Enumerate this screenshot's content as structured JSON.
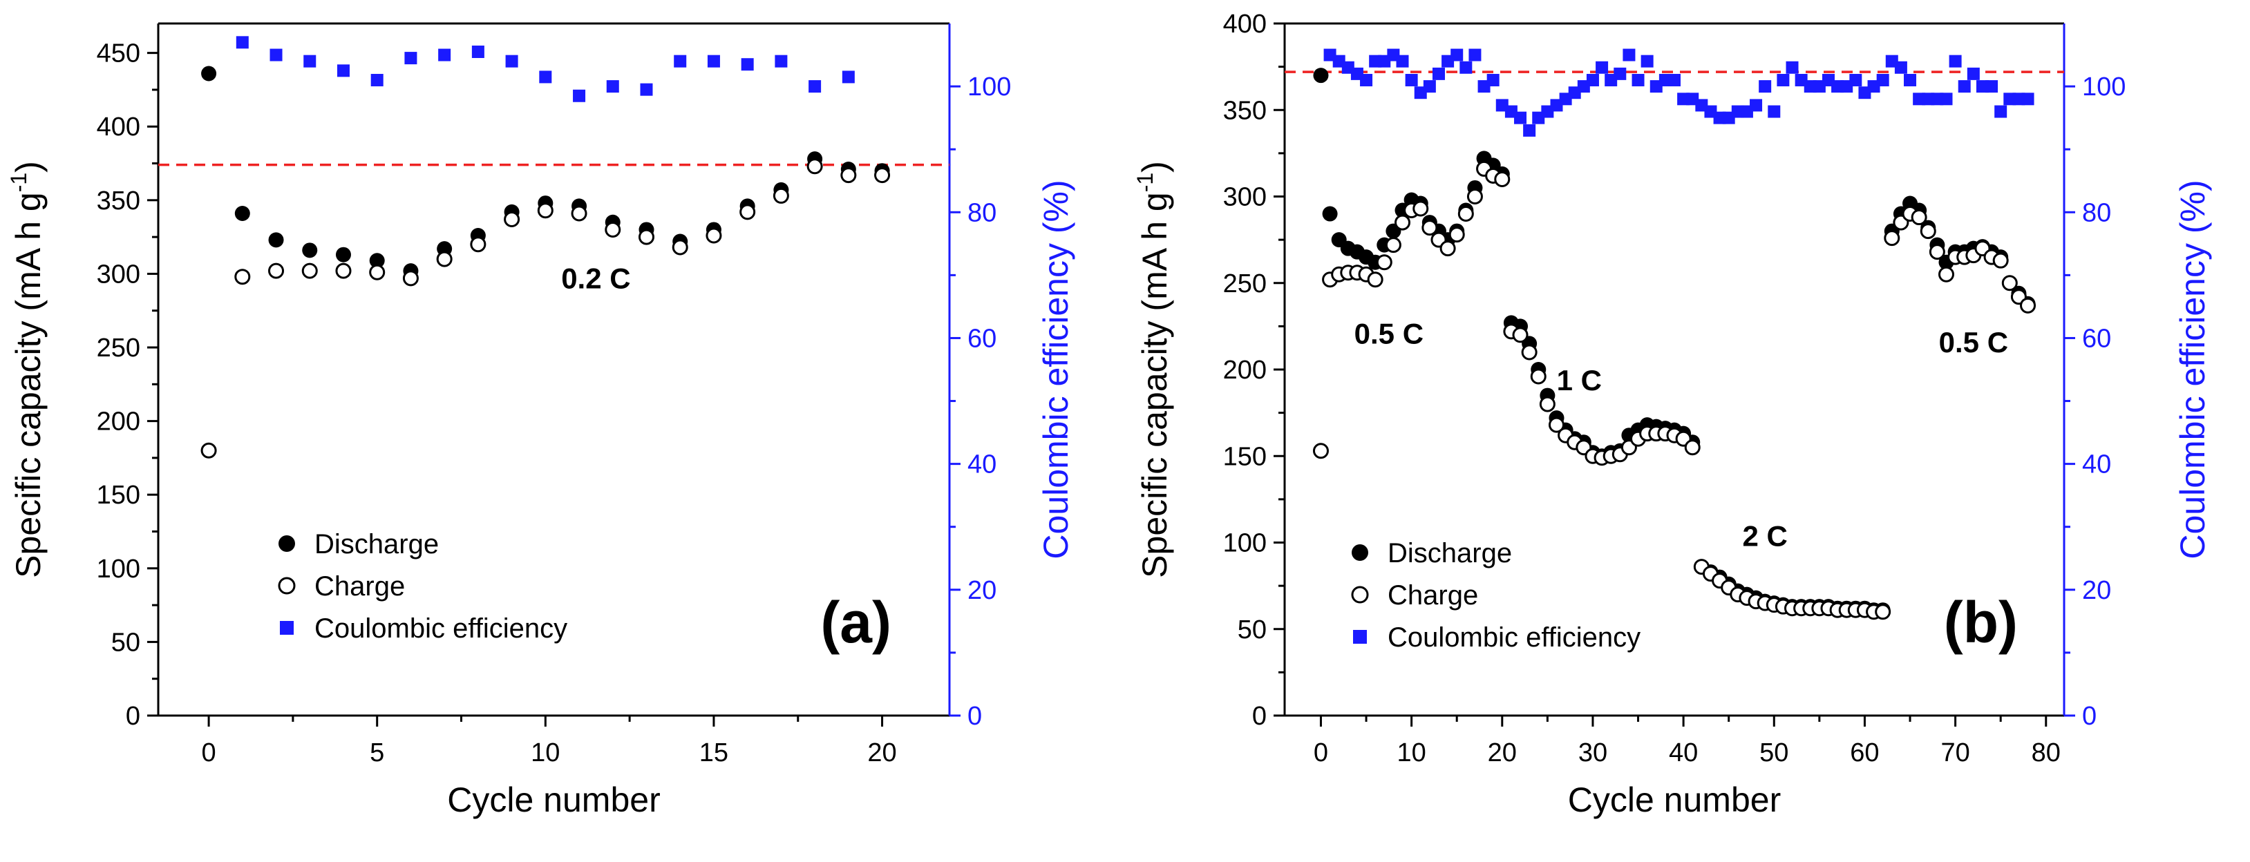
{
  "chart_data": [
    {
      "panel": "(a)",
      "type": "scatter",
      "xlabel": "Cycle number",
      "ylabel_main": "Specific capacity (mA h g",
      "ylabel_sup": "-1",
      "ylabel_close": ")",
      "ylabel_right": "Coulombic efficiency (%)",
      "xlim": [
        -1.5,
        22
      ],
      "ylim": [
        0,
        470
      ],
      "y2lim": [
        0,
        110
      ],
      "xticks": [
        0,
        5,
        10,
        15,
        20
      ],
      "yticks": [
        0,
        50,
        100,
        150,
        200,
        250,
        300,
        350,
        400,
        450
      ],
      "y2ticks": [
        0,
        20,
        40,
        60,
        80,
        100
      ],
      "ref_line_capacity": 374,
      "annotations": [
        {
          "text": "0.2 C",
          "x": 11.5,
          "y": 290
        }
      ],
      "legend": {
        "position": "bottom-left",
        "entries": [
          "Discharge",
          "Charge",
          "Coulombic efficiency"
        ]
      },
      "series": [
        {
          "name": "Discharge",
          "axis": "left",
          "x": [
            0,
            1,
            2,
            3,
            4,
            5,
            6,
            7,
            8,
            9,
            10,
            11,
            12,
            13,
            14,
            15,
            16,
            17,
            18,
            19,
            20
          ],
          "y": [
            436,
            341,
            323,
            316,
            313,
            309,
            302,
            317,
            326,
            342,
            348,
            346,
            335,
            330,
            322,
            330,
            346,
            357,
            378,
            371,
            370
          ]
        },
        {
          "name": "Charge",
          "axis": "left",
          "x": [
            0,
            1,
            2,
            3,
            4,
            5,
            6,
            7,
            8,
            9,
            10,
            11,
            12,
            13,
            14,
            15,
            16,
            17,
            18,
            19,
            20
          ],
          "y": [
            180,
            298,
            302,
            302,
            302,
            301,
            297,
            310,
            320,
            337,
            343,
            341,
            330,
            325,
            318,
            326,
            342,
            353,
            373,
            367,
            367
          ]
        },
        {
          "name": "Coulombic efficiency",
          "axis": "right",
          "x": [
            1,
            2,
            3,
            4,
            5,
            6,
            7,
            8,
            9,
            10,
            11,
            12,
            13,
            14,
            15,
            16,
            17,
            18,
            19
          ],
          "y": [
            107,
            105,
            104,
            102.5,
            101,
            104.5,
            105,
            105.5,
            104,
            101.5,
            98.5,
            100,
            99.5,
            104,
            104,
            103.5,
            104,
            100,
            101.5
          ]
        }
      ]
    },
    {
      "panel": "(b)",
      "type": "scatter",
      "xlabel": "Cycle number",
      "ylabel_main": "Specific capacity (mA h g",
      "ylabel_sup": "-1",
      "ylabel_close": ")",
      "ylabel_right": "Coulombic efficiency (%)",
      "xlim": [
        -4,
        82
      ],
      "ylim": [
        0,
        400
      ],
      "y2lim": [
        0,
        110
      ],
      "xticks": [
        0,
        10,
        20,
        30,
        40,
        50,
        60,
        70,
        80
      ],
      "yticks": [
        0,
        50,
        100,
        150,
        200,
        250,
        300,
        350,
        400
      ],
      "y2ticks": [
        0,
        20,
        40,
        60,
        80,
        100
      ],
      "ref_line_capacity": 372,
      "annotations": [
        {
          "text": "0.5 C",
          "x": 7.5,
          "y": 215
        },
        {
          "text": "1 C",
          "x": 28.5,
          "y": 188
        },
        {
          "text": "2 C",
          "x": 49,
          "y": 98
        },
        {
          "text": "0.5 C",
          "x": 72,
          "y": 210
        }
      ],
      "legend": {
        "position": "bottom-left",
        "entries": [
          "Discharge",
          "Charge",
          "Coulombic efficiency"
        ]
      },
      "series": [
        {
          "name": "Discharge",
          "axis": "left",
          "x": [
            0,
            1,
            2,
            3,
            4,
            5,
            6,
            7,
            8,
            9,
            10,
            11,
            12,
            13,
            14,
            15,
            16,
            17,
            18,
            19,
            20,
            21,
            22,
            23,
            24,
            25,
            26,
            27,
            28,
            29,
            30,
            31,
            32,
            33,
            34,
            35,
            36,
            37,
            38,
            39,
            40,
            41,
            42,
            43,
            44,
            45,
            46,
            47,
            48,
            49,
            50,
            51,
            52,
            53,
            54,
            55,
            56,
            57,
            58,
            59,
            60,
            61,
            62,
            63,
            64,
            65,
            66,
            67,
            68,
            69,
            70,
            71,
            72,
            73,
            74,
            75,
            76,
            77,
            78
          ],
          "y": [
            370,
            290,
            275,
            270,
            268,
            265,
            262,
            272,
            280,
            292,
            298,
            296,
            285,
            280,
            275,
            280,
            292,
            305,
            322,
            318,
            313,
            227,
            225,
            215,
            200,
            185,
            172,
            165,
            160,
            158,
            152,
            150,
            152,
            153,
            162,
            165,
            168,
            167,
            166,
            165,
            163,
            158,
            86,
            83,
            80,
            76,
            72,
            70,
            68,
            66,
            65,
            64,
            63,
            63,
            63,
            63,
            63,
            62,
            62,
            62,
            62,
            61,
            61,
            280,
            290,
            296,
            292,
            282,
            272,
            262,
            268,
            268,
            270,
            271,
            268,
            265,
            250,
            244,
            238
          ]
        },
        {
          "name": "Charge",
          "axis": "left",
          "x": [
            0,
            1,
            2,
            3,
            4,
            5,
            6,
            7,
            8,
            9,
            10,
            11,
            12,
            13,
            14,
            15,
            16,
            17,
            18,
            19,
            20,
            21,
            22,
            23,
            24,
            25,
            26,
            27,
            28,
            29,
            30,
            31,
            32,
            33,
            34,
            35,
            36,
            37,
            38,
            39,
            40,
            41,
            42,
            43,
            44,
            45,
            46,
            47,
            48,
            49,
            50,
            51,
            52,
            53,
            54,
            55,
            56,
            57,
            58,
            59,
            60,
            61,
            62,
            63,
            64,
            65,
            66,
            67,
            68,
            69,
            70,
            71,
            72,
            73,
            74,
            75,
            76,
            77,
            78
          ],
          "y": [
            153,
            252,
            255,
            256,
            256,
            255,
            252,
            262,
            272,
            285,
            292,
            293,
            282,
            275,
            270,
            278,
            290,
            300,
            316,
            312,
            310,
            222,
            220,
            210,
            196,
            180,
            168,
            162,
            158,
            155,
            150,
            149,
            150,
            151,
            155,
            160,
            163,
            163,
            163,
            162,
            160,
            155,
            86,
            82,
            78,
            74,
            70,
            68,
            66,
            65,
            64,
            63,
            62,
            62,
            62,
            62,
            62,
            61,
            61,
            61,
            61,
            60,
            60,
            276,
            285,
            290,
            288,
            280,
            268,
            255,
            265,
            265,
            266,
            270,
            265,
            263,
            250,
            242,
            237
          ]
        },
        {
          "name": "Coulombic efficiency",
          "axis": "right",
          "x": [
            1,
            2,
            3,
            4,
            5,
            6,
            7,
            8,
            9,
            10,
            11,
            12,
            13,
            14,
            15,
            16,
            17,
            18,
            19,
            20,
            21,
            22,
            23,
            24,
            25,
            26,
            27,
            28,
            29,
            30,
            31,
            32,
            33,
            34,
            35,
            36,
            37,
            38,
            39,
            40,
            41,
            42,
            43,
            44,
            45,
            46,
            47,
            48,
            49,
            50,
            51,
            52,
            53,
            54,
            55,
            56,
            57,
            58,
            59,
            60,
            61,
            62,
            63,
            64,
            65,
            66,
            67,
            68,
            69,
            70,
            71,
            72,
            73,
            74,
            75,
            76,
            77,
            78
          ],
          "y": [
            105,
            104,
            103,
            102,
            101,
            104,
            104,
            105,
            104,
            101,
            99,
            100,
            102,
            104,
            105,
            103,
            105,
            100,
            101,
            97,
            96,
            95,
            93,
            95,
            96,
            97,
            98,
            99,
            100,
            101,
            103,
            101,
            102,
            105,
            101,
            104,
            100,
            101,
            101,
            98,
            98,
            97,
            96,
            95,
            95,
            96,
            96,
            97,
            100,
            96,
            101,
            103,
            101,
            100,
            100,
            101,
            100,
            100,
            101,
            99,
            100,
            101,
            104,
            103,
            101,
            98,
            98,
            98,
            98,
            104,
            100,
            102,
            100,
            100,
            96,
            98,
            98,
            98
          ]
        }
      ]
    }
  ]
}
